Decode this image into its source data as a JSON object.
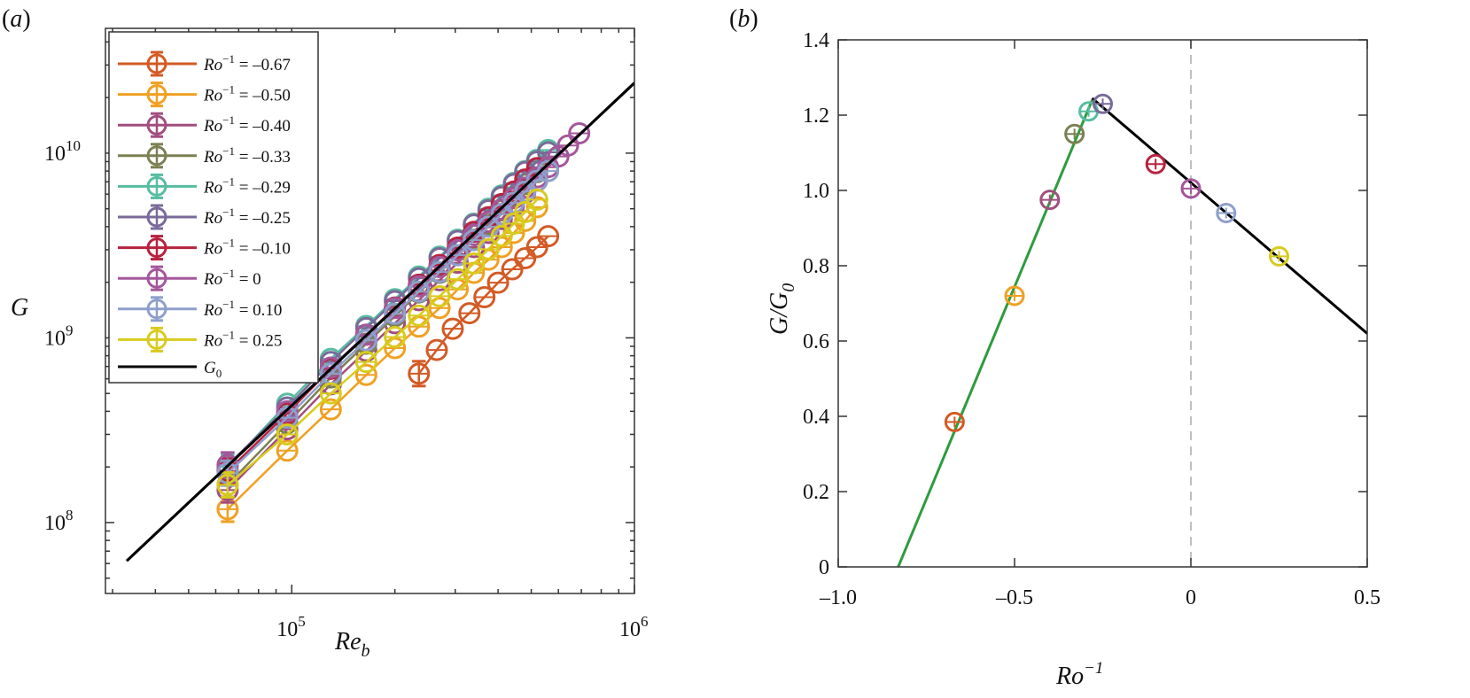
{
  "chart_data": [
    {
      "panel": "(a)",
      "type": "scatter",
      "xscale": "log",
      "yscale": "log",
      "xlabel": "Re_b",
      "ylabel": "G",
      "xlim": [
        28600,
        1000000
      ],
      "ylim": [
        41300000,
        47400000000
      ],
      "xticks": [
        {
          "value": 100000,
          "base": "10",
          "exp": "5"
        },
        {
          "value": 1000000,
          "base": "10",
          "exp": "6"
        }
      ],
      "yticks": [
        {
          "value": 100000000,
          "base": "10",
          "exp": "8"
        },
        {
          "value": 1000000000,
          "base": "10",
          "exp": "9"
        },
        {
          "value": 10000000000,
          "base": "10",
          "exp": "10"
        }
      ],
      "legend_position": "top-left",
      "series": [
        {
          "name": "Ro^-1 = -0.67",
          "label_value": "–0.67",
          "color": "#D35A25",
          "x": [
            235000,
            265000,
            295000,
            330000,
            365000,
            400000,
            440000,
            480000,
            520000,
            560000
          ],
          "y": [
            640000000,
            860000000,
            1120000000,
            1360000000,
            1660000000,
            1990000000,
            2350000000,
            2700000000,
            3100000000,
            3550000000
          ]
        },
        {
          "name": "Ro^-1 = -0.50",
          "label_value": "–0.50",
          "color": "#F0A022",
          "x": [
            65000,
            97000,
            130000,
            165000,
            200000,
            235000,
            270000,
            305000,
            340000,
            375000,
            410000,
            445000,
            480000,
            520000
          ],
          "y": [
            118000000,
            245000000,
            410000000,
            630000000,
            880000000,
            1150000000,
            1450000000,
            1830000000,
            2250000000,
            2650000000,
            3100000000,
            3700000000,
            4300000000,
            5100000000
          ]
        },
        {
          "name": "Ro^-1 = -0.40",
          "label_value": "–0.40",
          "color": "#A24E7F",
          "x": [
            65000,
            97000,
            130000,
            165000,
            200000,
            235000,
            270000,
            305000,
            340000,
            375000,
            410000,
            445000,
            480000,
            520000
          ],
          "y": [
            150000000,
            320000000,
            560000000,
            850000000,
            1200000000,
            1600000000,
            2050000000,
            2550000000,
            3100000000,
            3700000000,
            4400000000,
            5200000000,
            6100000000,
            7100000000
          ]
        },
        {
          "name": "Ro^-1 = -0.33",
          "label_value": "–0.33",
          "color": "#7C8053",
          "x": [
            65000,
            97000,
            130000,
            165000,
            200000,
            235000,
            270000,
            305000,
            340000,
            375000,
            410000,
            445000,
            480000,
            520000
          ],
          "y": [
            160000000,
            345000000,
            610000000,
            930000000,
            1310000000,
            1760000000,
            2250000000,
            2800000000,
            3400000000,
            4100000000,
            4900000000,
            5800000000,
            6800000000,
            7900000000
          ]
        },
        {
          "name": "Ro^-1 = -0.29",
          "label_value": "–0.29",
          "color": "#58BCA0",
          "x": [
            65000,
            97000,
            130000,
            165000,
            200000,
            235000,
            270000,
            305000,
            340000,
            375000,
            410000,
            445000,
            480000,
            520000,
            560000
          ],
          "y": [
            200000000,
            440000000,
            770000000,
            1160000000,
            1620000000,
            2150000000,
            2750000000,
            3400000000,
            4150000000,
            5000000000,
            5900000000,
            6900000000,
            8000000000,
            9200000000,
            10400000000
          ]
        },
        {
          "name": "Ro^-1 = -0.25",
          "label_value": "–0.25",
          "color": "#7A6A9A",
          "x": [
            65000,
            97000,
            130000,
            165000,
            200000,
            235000,
            270000,
            305000,
            340000,
            375000,
            410000,
            445000,
            480000,
            520000,
            560000
          ],
          "y": [
            205000000,
            420000000,
            740000000,
            1130000000,
            1580000000,
            2100000000,
            2700000000,
            3350000000,
            4100000000,
            4900000000,
            5800000000,
            6800000000,
            7900000000,
            9000000000,
            10100000000
          ]
        },
        {
          "name": "Ro^-1 = -0.10",
          "label_value": "–0.10",
          "color": "#B8223F",
          "x": [
            65000,
            97000,
            130000,
            165000,
            200000,
            235000,
            270000,
            305000,
            340000,
            375000,
            410000,
            445000,
            480000,
            520000
          ],
          "y": [
            190000000,
            390000000,
            680000000,
            1040000000,
            1460000000,
            1940000000,
            2480000000,
            3080000000,
            3750000000,
            4500000000,
            5300000000,
            6200000000,
            7200000000,
            8300000000
          ]
        },
        {
          "name": "Ro^-1 = 0",
          "label_value": "0",
          "color": "#A4579B",
          "x": [
            65000,
            97000,
            130000,
            165000,
            200000,
            235000,
            270000,
            305000,
            340000,
            375000,
            410000,
            445000,
            480000,
            520000,
            560000,
            600000,
            640000,
            690000
          ],
          "y": [
            205000000,
            400000000,
            690000000,
            1040000000,
            1450000000,
            1900000000,
            2420000000,
            2980000000,
            3600000000,
            4250000000,
            4950000000,
            5700000000,
            6500000000,
            7400000000,
            8400000000,
            9600000000,
            11000000000,
            12800000000
          ]
        },
        {
          "name": "Ro^-1 = 0.10",
          "label_value": "0.10",
          "color": "#8E9FCB",
          "x": [
            65000,
            97000,
            130000,
            165000,
            200000,
            235000,
            270000,
            305000,
            340000,
            375000,
            410000,
            445000,
            480000,
            520000,
            560000
          ],
          "y": [
            185000000,
            370000000,
            640000000,
            970000000,
            1350000000,
            1780000000,
            2270000000,
            2800000000,
            3380000000,
            4000000000,
            4680000000,
            5400000000,
            6200000000,
            7100000000,
            8000000000
          ]
        },
        {
          "name": "Ro^-1 = 0.25",
          "label_value": "0.25",
          "color": "#D8CB1E",
          "x": [
            65000,
            97000,
            130000,
            165000,
            200000,
            235000,
            270000,
            305000,
            340000,
            375000,
            410000,
            445000,
            480000,
            520000
          ],
          "y": [
            160000000,
            300000000,
            500000000,
            740000000,
            1010000000,
            1320000000,
            1680000000,
            2080000000,
            2530000000,
            3020000000,
            3560000000,
            4150000000,
            4800000000,
            5600000000
          ]
        }
      ],
      "reference_line": {
        "name": "G_0",
        "color": "#000000",
        "x": [
          33000,
          1000000
        ],
        "y": [
          62000000,
          24000000000
        ]
      }
    },
    {
      "panel": "(b)",
      "type": "scatter",
      "xlabel": "Ro^-1",
      "ylabel": "G/G_0",
      "xlim": [
        -1.0,
        0.5
      ],
      "ylim": [
        0,
        1.4
      ],
      "xticks": [
        {
          "value": -1.0,
          "label": "–1.0"
        },
        {
          "value": -0.5,
          "label": "–0.5"
        },
        {
          "value": 0,
          "label": "0"
        },
        {
          "value": 0.5,
          "label": "0.5"
        }
      ],
      "yticks": [
        {
          "value": 0,
          "label": "0"
        },
        {
          "value": 0.2,
          "label": "0.2"
        },
        {
          "value": 0.4,
          "label": "0.4"
        },
        {
          "value": 0.6,
          "label": "0.6"
        },
        {
          "value": 0.8,
          "label": "0.8"
        },
        {
          "value": 1.0,
          "label": "1.0"
        },
        {
          "value": 1.2,
          "label": "1.2"
        },
        {
          "value": 1.4,
          "label": "1.4"
        }
      ],
      "points": [
        {
          "x": -0.67,
          "y": 0.385,
          "color": "#D35A25"
        },
        {
          "x": -0.5,
          "y": 0.72,
          "color": "#F0A022"
        },
        {
          "x": -0.4,
          "y": 0.975,
          "color": "#A24E7F"
        },
        {
          "x": -0.33,
          "y": 1.15,
          "color": "#7C8053"
        },
        {
          "x": -0.29,
          "y": 1.21,
          "color": "#58BCA0"
        },
        {
          "x": -0.25,
          "y": 1.23,
          "color": "#7A6A9A"
        },
        {
          "x": -0.1,
          "y": 1.07,
          "color": "#B8223F"
        },
        {
          "x": 0,
          "y": 1.005,
          "color": "#A4579B"
        },
        {
          "x": 0.1,
          "y": 0.94,
          "color": "#8E9FCB"
        },
        {
          "x": 0.25,
          "y": 0.825,
          "color": "#D8CB1E"
        }
      ],
      "fit_lines": [
        {
          "name": "rising-fit",
          "color": "#2E9B3E",
          "x": [
            -0.83,
            -0.28
          ],
          "y": [
            0,
            1.24
          ]
        },
        {
          "name": "falling-fit",
          "color": "#000000",
          "x": [
            -0.28,
            0.5
          ],
          "y": [
            1.245,
            0.62
          ]
        }
      ],
      "reference_vline": {
        "x": 0,
        "color": "#AAAAAA",
        "style": "dashed"
      }
    }
  ],
  "labels": {
    "panel_a": "(a)",
    "panel_b": "(b)",
    "a_ylabel": "G",
    "a_xlabel_main": "Re",
    "a_xlabel_sub": "b",
    "b_ylabel_main": "G/G",
    "b_ylabel_sub": "0",
    "b_xlabel_main": "Ro",
    "b_xlabel_sup": "−1",
    "legend_ro": "Ro",
    "legend_sup": "−1",
    "legend_eq": " = ",
    "legend_g0_main": "G",
    "legend_g0_sub": "0"
  }
}
